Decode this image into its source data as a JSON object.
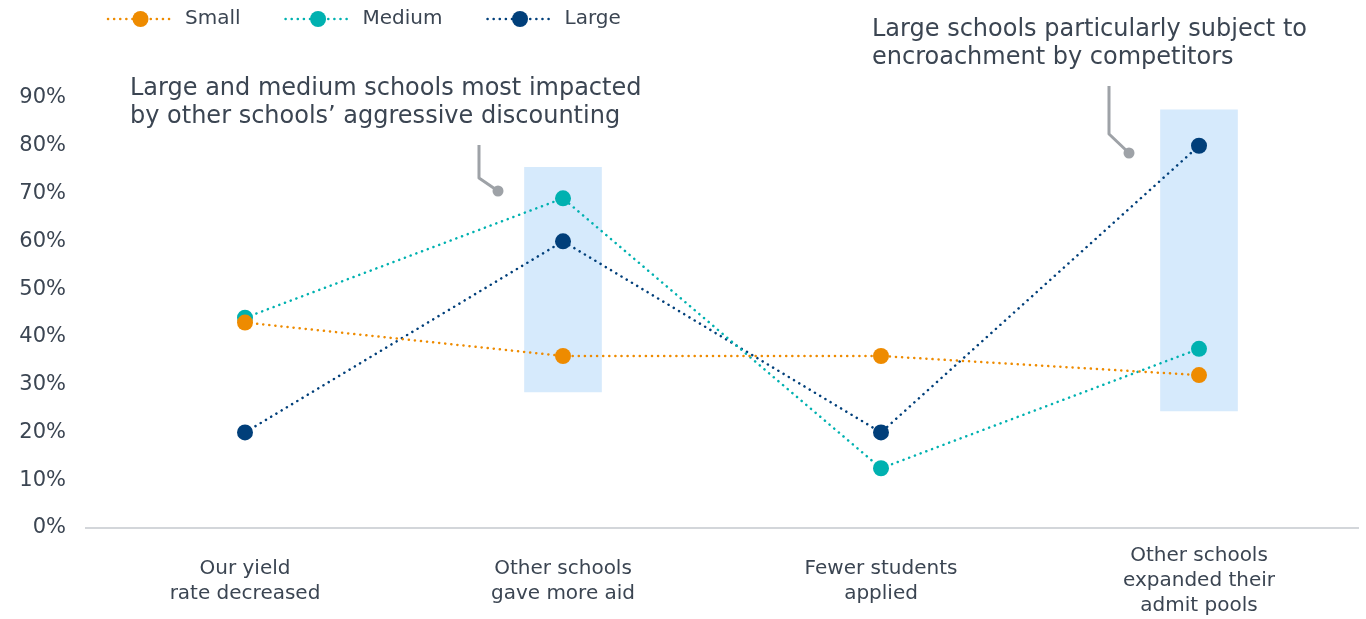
{
  "chart_data": {
    "type": "line",
    "categories": [
      "Our yield\nrate decreased",
      "Other schools\ngave more aid",
      "Fewer students\napplied",
      "Other schools\nexpanded their\nadmit pools"
    ],
    "series": [
      {
        "name": "Small",
        "color": "#ee8b00",
        "values": [
          43,
          36,
          36,
          32
        ]
      },
      {
        "name": "Medium",
        "color": "#00b1b0",
        "values": [
          44,
          69,
          12.5,
          37.5
        ]
      },
      {
        "name": "Large",
        "color": "#013f7a",
        "values": [
          20,
          60,
          20,
          80
        ]
      },
      {
        "type": "bar",
        "color": "#d6eafc",
        "base": [
          null,
          28.5,
          null,
          24.5
        ],
        "values": [
          null,
          47,
          null,
          63
        ]
      }
    ],
    "ylim": [
      0,
      90
    ],
    "yticks": [
      {
        "value": 0,
        "label": "0%"
      },
      {
        "value": 10,
        "label": "10%"
      },
      {
        "value": 20,
        "label": "20%"
      },
      {
        "value": 30,
        "label": "30%"
      },
      {
        "value": 40,
        "label": "40%"
      },
      {
        "value": 50,
        "label": "50%"
      },
      {
        "value": 60,
        "label": "60%"
      },
      {
        "value": 70,
        "label": "70%"
      },
      {
        "value": 80,
        "label": "80%"
      },
      {
        "value": 90,
        "label": "90%"
      }
    ],
    "grid": false,
    "legend": "top left",
    "marker": "circle",
    "line_style": "dotted",
    "annotations": [
      "Large and medium schools most impacted\nby other schools’ aggressive discounting",
      "Large schools particularly subject to\nencroachment by competitors"
    ]
  }
}
